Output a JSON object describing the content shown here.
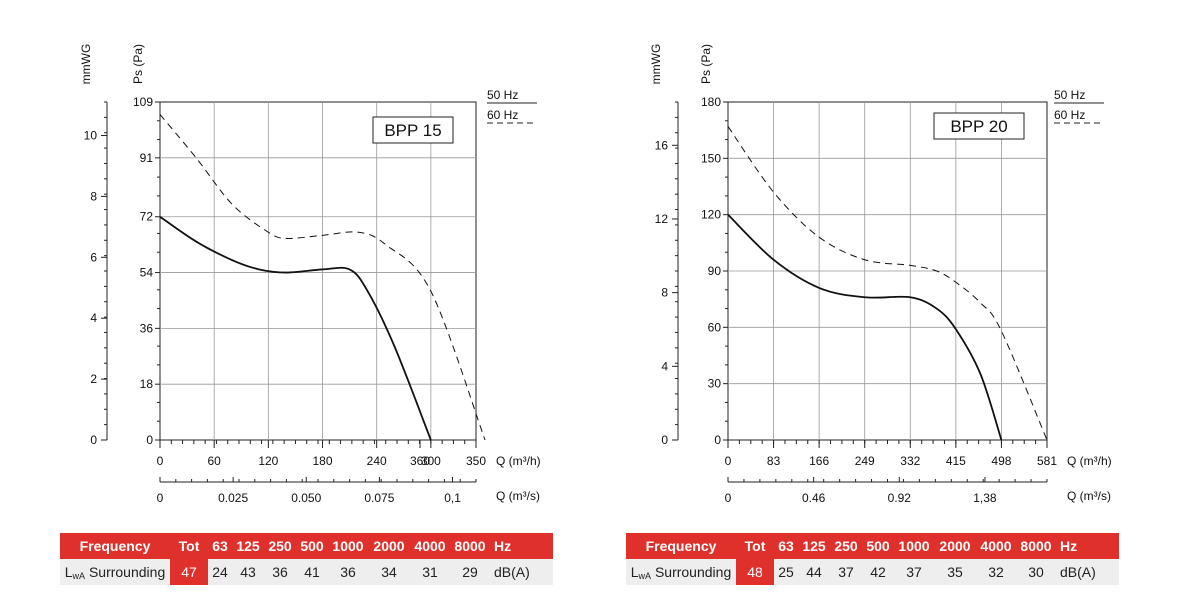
{
  "chart_data": [
    {
      "type": "line",
      "title": "BPP 15",
      "ylabel": "Ps (Pa)",
      "ylabel_secondary": "mmWG",
      "xlabel": "Q (m³/h)",
      "xlabel_secondary": "Q (m³/s)",
      "xlim": [
        0,
        350
      ],
      "ylim": [
        0,
        109
      ],
      "y_ticks": [
        "0",
        "18",
        "36",
        "54",
        "72",
        "91",
        "109"
      ],
      "y_secondary_ticks": [
        "0",
        "2",
        "4",
        "6",
        "8",
        "10"
      ],
      "x_ticks": [
        "0",
        "60",
        "120",
        "180",
        "240",
        "300",
        "360",
        "350"
      ],
      "x_secondary_ticks": [
        "0",
        "0.025",
        "0.050",
        "0.075",
        "0,1"
      ],
      "legend": [
        {
          "label": "50 Hz",
          "style": "solid"
        },
        {
          "label": "60 Hz",
          "style": "dashed"
        }
      ],
      "series": [
        {
          "name": "50 Hz",
          "x": [
            0,
            40,
            80,
            110,
            140,
            180,
            210,
            230,
            260,
            300
          ],
          "y": [
            72,
            64,
            58,
            55,
            54,
            55,
            55,
            48,
            30,
            0
          ]
        },
        {
          "name": "60 Hz",
          "x": [
            0,
            40,
            80,
            120,
            140,
            180,
            220,
            250,
            300,
            360
          ],
          "y": [
            105,
            91,
            76,
            67,
            65,
            66,
            67,
            63,
            48,
            0
          ]
        }
      ]
    },
    {
      "type": "line",
      "title": "BPP 20",
      "ylabel": "Ps (Pa)",
      "ylabel_secondary": "mmWG",
      "xlabel": "Q (m³/h)",
      "xlabel_secondary": "Q (m³/s)",
      "xlim": [
        0,
        581
      ],
      "ylim": [
        0,
        180
      ],
      "y_ticks": [
        "0",
        "30",
        "60",
        "90",
        "120",
        "150",
        "180"
      ],
      "y_secondary_ticks": [
        "0",
        "4",
        "8",
        "12",
        "16"
      ],
      "x_ticks": [
        "0",
        "83",
        "166",
        "249",
        "332",
        "415",
        "498",
        "581"
      ],
      "x_secondary_ticks": [
        "0",
        "0.46",
        "0.92",
        "1,38"
      ],
      "legend": [
        {
          "label": "50 Hz",
          "style": "solid"
        },
        {
          "label": "60 Hz",
          "style": "dashed"
        }
      ],
      "series": [
        {
          "name": "50 Hz",
          "x": [
            0,
            83,
            166,
            249,
            332,
            380,
            415,
            460,
            498
          ],
          "y": [
            120,
            96,
            81,
            76,
            76,
            70,
            59,
            35,
            0
          ]
        },
        {
          "name": "60 Hz",
          "x": [
            0,
            83,
            166,
            249,
            332,
            380,
            415,
            460,
            498,
            581
          ],
          "y": [
            167,
            132,
            108,
            96,
            93,
            90,
            84,
            73,
            58,
            0
          ]
        }
      ]
    }
  ],
  "tables": [
    {
      "header": {
        "frequency": "Frequency",
        "tot": "Tot",
        "bands": [
          "63",
          "125",
          "250",
          "500",
          "1000",
          "2000",
          "4000",
          "8000"
        ],
        "unit": "Hz"
      },
      "row": {
        "label_main": "L",
        "label_sub": "wA",
        "label_rest": " Surrounding",
        "tot": "47",
        "values": [
          "24",
          "43",
          "36",
          "41",
          "36",
          "34",
          "31",
          "29"
        ],
        "unit": "dB(A)"
      }
    },
    {
      "header": {
        "frequency": "Frequency",
        "tot": "Tot",
        "bands": [
          "63",
          "125",
          "250",
          "500",
          "1000",
          "2000",
          "4000",
          "8000"
        ],
        "unit": "Hz"
      },
      "row": {
        "label_main": "L",
        "label_sub": "wA",
        "label_rest": " Surrounding",
        "tot": "48",
        "values": [
          "25",
          "44",
          "37",
          "42",
          "37",
          "35",
          "32",
          "30"
        ],
        "unit": "dB(A)"
      }
    }
  ]
}
